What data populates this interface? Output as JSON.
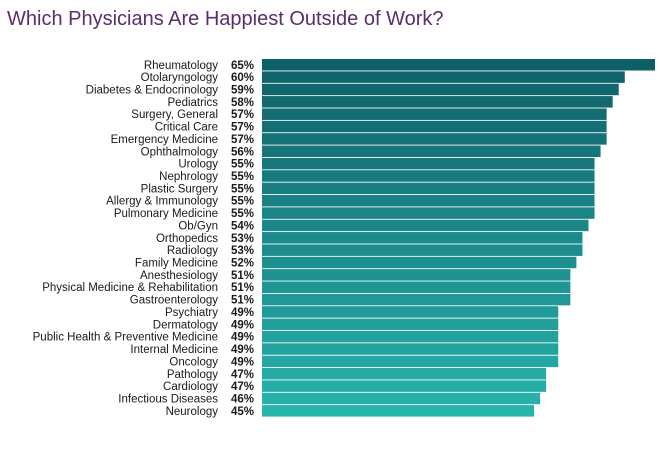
{
  "chart_data": {
    "type": "bar",
    "orientation": "horizontal",
    "title": "Which Physicians Are Happiest Outside of Work?",
    "value_format": "percent",
    "xlim": [
      0,
      65
    ],
    "grid": false,
    "legend": "none",
    "bar_color_top": "#0e6068",
    "bar_color_bottom": "#29b3ad",
    "categories": [
      "Rheumatology",
      "Otolaryngology",
      "Diabetes & Endocrinology",
      "Pediatrics",
      "Surgery, General",
      "Critical Care",
      "Emergency Medicine",
      "Ophthalmology",
      "Urology",
      "Nephrology",
      "Plastic Surgery",
      "Allergy & Immunology",
      "Pulmonary Medicine",
      "Ob/Gyn",
      "Orthopedics",
      "Radiology",
      "Family Medicine",
      "Anesthesiology",
      "Physical Medicine & Rehabilitation",
      "Gastroenterology",
      "Psychiatry",
      "Dermatology",
      "Public Health & Preventive Medicine",
      "Internal Medicine",
      "Oncology",
      "Pathology",
      "Cardiology",
      "Infectious Diseases",
      "Neurology"
    ],
    "values": [
      65,
      60,
      59,
      58,
      57,
      57,
      57,
      56,
      55,
      55,
      55,
      55,
      55,
      54,
      53,
      53,
      52,
      51,
      51,
      51,
      49,
      49,
      49,
      49,
      49,
      47,
      47,
      46,
      45
    ],
    "value_labels": [
      "65%",
      "60%",
      "59%",
      "58%",
      "57%",
      "57%",
      "57%",
      "56%",
      "55%",
      "55%",
      "55%",
      "55%",
      "55%",
      "54%",
      "53%",
      "53%",
      "52%",
      "51%",
      "51%",
      "51%",
      "49%",
      "49%",
      "49%",
      "49%",
      "49%",
      "47%",
      "47%",
      "46%",
      "45%"
    ]
  }
}
